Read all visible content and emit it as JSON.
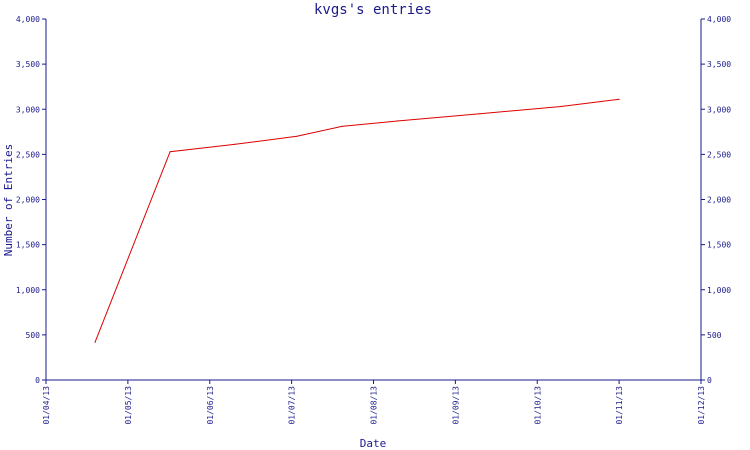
{
  "chart_data": {
    "type": "line",
    "title": "kvgs's entries",
    "xlabel": "Date",
    "ylabel": "Number of Entries",
    "x_tick_labels": [
      "01/04/13",
      "01/05/13",
      "01/06/13",
      "01/07/13",
      "01/08/13",
      "01/09/13",
      "01/10/13",
      "01/11/13",
      "01/12/13"
    ],
    "y_tick_labels": [
      "0",
      "500",
      "1,000",
      "1,500",
      "2,000",
      "2,500",
      "3,000",
      "3,500",
      "4,000"
    ],
    "ylim": [
      0,
      4000
    ],
    "xlim": [
      "2013-04-01",
      "2013-12-01"
    ],
    "grid": false,
    "series": [
      {
        "color": "#dd0000",
        "x": [
          "2013-04-19",
          "2013-05-17",
          "2013-06-10",
          "2013-07-03",
          "2013-07-20",
          "2013-08-10",
          "2013-09-10",
          "2013-10-10",
          "2013-11-01"
        ],
        "y": [
          420,
          2530,
          2610,
          2700,
          2810,
          2870,
          2950,
          3030,
          3110
        ]
      }
    ],
    "colors": {
      "axis": "#1a1a8c",
      "line": "#dd0000",
      "background": "#ffffff"
    }
  }
}
